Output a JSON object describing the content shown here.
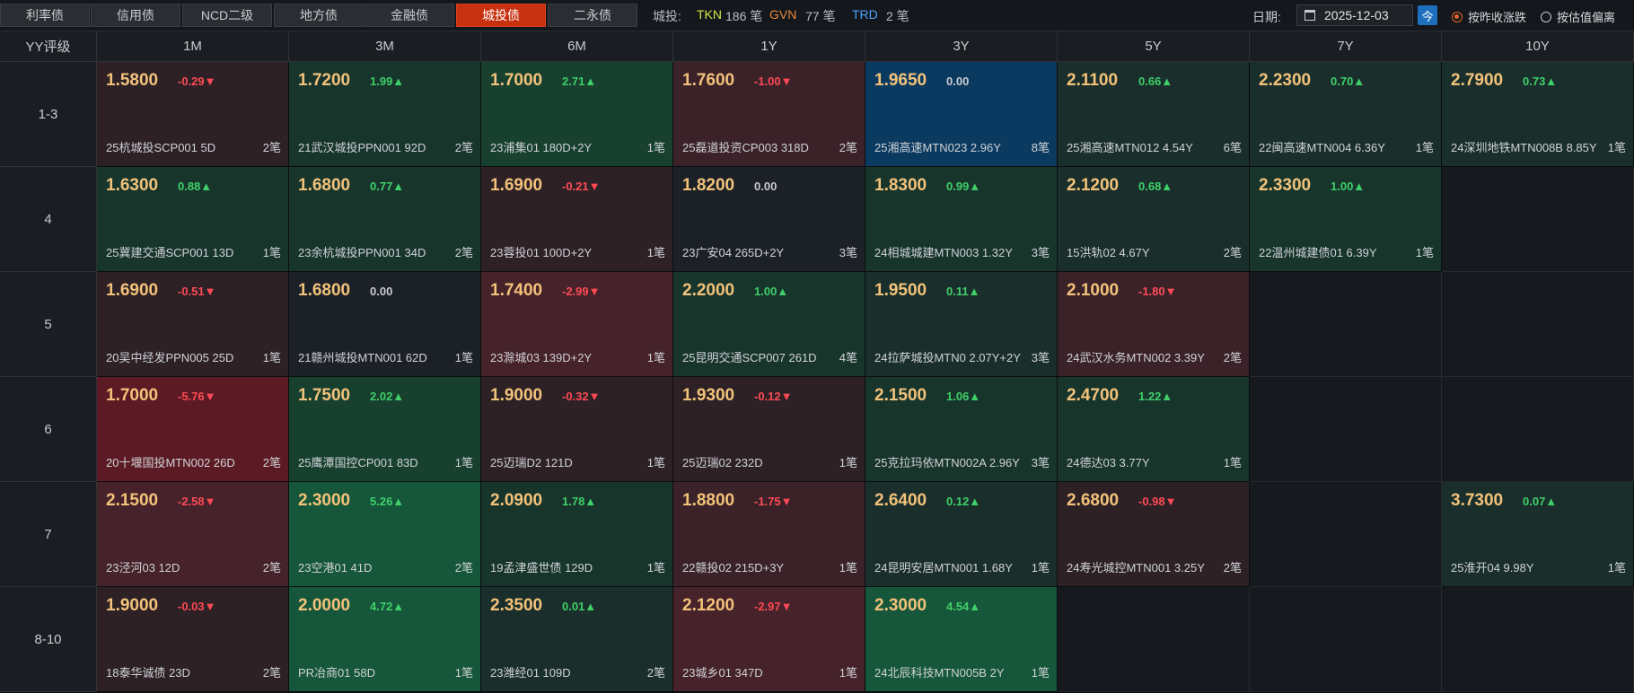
{
  "tabs": [
    "利率债",
    "信用债",
    "NCD二级",
    "地方债",
    "金融债",
    "城投债",
    "二永债"
  ],
  "active_tab": "城投债",
  "stats": {
    "label": "城投:",
    "tkn_label": "TKN",
    "tkn_count": "186 笔",
    "gvn_label": "GVN",
    "gvn_count": "77 笔",
    "trd_label": "TRD",
    "trd_count": "2 笔"
  },
  "date": {
    "label": "日期:",
    "value": "2025-12-03",
    "today_label": "今"
  },
  "radio": {
    "option1": "按昨收涨跌",
    "option2": "按估值偏离",
    "selected": "option1"
  },
  "corner_label": "YY评级",
  "columns": [
    "1M",
    "3M",
    "6M",
    "1Y",
    "3Y",
    "5Y",
    "7Y",
    "10Y"
  ],
  "rows": [
    {
      "label": "1-3",
      "cells": [
        {
          "yield": "1.5800",
          "change": "-0.29▼",
          "dir": "down",
          "bond": "25杭城投SCP001 5D",
          "count": "2笔",
          "color": "#2d2126"
        },
        {
          "yield": "1.7200",
          "change": "1.99▲",
          "dir": "up",
          "bond": "21武汉城投PPN001 92D",
          "count": "2笔",
          "color": "#18352c"
        },
        {
          "yield": "1.7000",
          "change": "2.71▲",
          "dir": "up",
          "bond": "23浦集01 180D+2Y",
          "count": "1笔",
          "color": "#17402f"
        },
        {
          "yield": "1.7600",
          "change": "-1.00▼",
          "dir": "down",
          "bond": "25磊道投资CP003 318D",
          "count": "2笔",
          "color": "#3a2228"
        },
        {
          "yield": "1.9650",
          "change": "0.00",
          "dir": "flat",
          "bond": "25湘高速MTN023 2.96Y",
          "count": "8笔",
          "color": "#0b3a60"
        },
        {
          "yield": "2.1100",
          "change": "0.66▲",
          "dir": "up",
          "bond": "25湘高速MTN012 4.54Y",
          "count": "6笔",
          "color": "#1a2f2b"
        },
        {
          "yield": "2.2300",
          "change": "0.70▲",
          "dir": "up",
          "bond": "22闽高速MTN004 6.36Y",
          "count": "1笔",
          "color": "#1a2f2b"
        },
        {
          "yield": "2.7900",
          "change": "0.73▲",
          "dir": "up",
          "bond": "24深圳地铁MTN008B 8.85Y",
          "count": "1笔",
          "color": "#1a2f2b"
        }
      ]
    },
    {
      "label": "4",
      "cells": [
        {
          "yield": "1.6300",
          "change": "0.88▲",
          "dir": "up",
          "bond": "25冀建交通SCP001 13D",
          "count": "1笔",
          "color": "#18352c"
        },
        {
          "yield": "1.6800",
          "change": "0.77▲",
          "dir": "up",
          "bond": "23余杭城投PPN001 34D",
          "count": "2笔",
          "color": "#18352c"
        },
        {
          "yield": "1.6900",
          "change": "-0.21▼",
          "dir": "down",
          "bond": "23蓉投01 100D+2Y",
          "count": "1笔",
          "color": "#2d2126"
        },
        {
          "yield": "1.8200",
          "change": "0.00",
          "dir": "flat",
          "bond": "23广安04 265D+2Y",
          "count": "3笔",
          "color": "#1c2128"
        },
        {
          "yield": "1.8300",
          "change": "0.99▲",
          "dir": "up",
          "bond": "24相城城建MTN003 1.32Y",
          "count": "3笔",
          "color": "#18352c"
        },
        {
          "yield": "2.1200",
          "change": "0.68▲",
          "dir": "up",
          "bond": "15洪轨02 4.67Y",
          "count": "2笔",
          "color": "#1a2f2b"
        },
        {
          "yield": "2.3300",
          "change": "1.00▲",
          "dir": "up",
          "bond": "22温州城建债01 6.39Y",
          "count": "1笔",
          "color": "#18352c"
        },
        null
      ]
    },
    {
      "label": "5",
      "cells": [
        {
          "yield": "1.6900",
          "change": "-0.51▼",
          "dir": "down",
          "bond": "20吴中经发PPN005 25D",
          "count": "1笔",
          "color": "#2d2126"
        },
        {
          "yield": "1.6800",
          "change": "0.00",
          "dir": "flat",
          "bond": "21赣州城投MTN001 62D",
          "count": "1笔",
          "color": "#1c2128"
        },
        {
          "yield": "1.7400",
          "change": "-2.99▼",
          "dir": "down",
          "bond": "23滁城03 139D+2Y",
          "count": "1笔",
          "color": "#46222a"
        },
        {
          "yield": "2.2000",
          "change": "1.00▲",
          "dir": "up",
          "bond": "25昆明交通SCP007 261D",
          "count": "4笔",
          "color": "#18352c"
        },
        {
          "yield": "1.9500",
          "change": "0.11▲",
          "dir": "up",
          "bond": "24拉萨城投MTN0 2.07Y+2Y",
          "count": "3笔",
          "color": "#1a2f2b"
        },
        {
          "yield": "2.1000",
          "change": "-1.80▼",
          "dir": "down",
          "bond": "24武汉水务MTN002 3.39Y",
          "count": "2笔",
          "color": "#3a2228"
        },
        null,
        null
      ]
    },
    {
      "label": "6",
      "cells": [
        {
          "yield": "1.7000",
          "change": "-5.76▼",
          "dir": "down",
          "bond": "20十堰国投MTN002 26D",
          "count": "2笔",
          "color": "#5c1b24"
        },
        {
          "yield": "1.7500",
          "change": "2.02▲",
          "dir": "up",
          "bond": "25鹰潭国控CP001 83D",
          "count": "1笔",
          "color": "#17402f"
        },
        {
          "yield": "1.9000",
          "change": "-0.32▼",
          "dir": "down",
          "bond": "25迈瑞D2 121D",
          "count": "1笔",
          "color": "#2d2126"
        },
        {
          "yield": "1.9300",
          "change": "-0.12▼",
          "dir": "down",
          "bond": "25迈瑞02 232D",
          "count": "1笔",
          "color": "#2d2126"
        },
        {
          "yield": "2.1500",
          "change": "1.06▲",
          "dir": "up",
          "bond": "25克拉玛依MTN002A 2.96Y",
          "count": "3笔",
          "color": "#18352c"
        },
        {
          "yield": "2.4700",
          "change": "1.22▲",
          "dir": "up",
          "bond": "24德达03 3.77Y",
          "count": "1笔",
          "color": "#18352c"
        },
        null,
        null
      ]
    },
    {
      "label": "7",
      "cells": [
        {
          "yield": "2.1500",
          "change": "-2.58▼",
          "dir": "down",
          "bond": "23泾河03 12D",
          "count": "2笔",
          "color": "#46222a"
        },
        {
          "yield": "2.3000",
          "change": "5.26▲",
          "dir": "up",
          "bond": "23空港01 41D",
          "count": "2笔",
          "color": "#16563a"
        },
        {
          "yield": "2.0900",
          "change": "1.78▲",
          "dir": "up",
          "bond": "19孟津盛世债 129D",
          "count": "1笔",
          "color": "#18352c"
        },
        {
          "yield": "1.8800",
          "change": "-1.75▼",
          "dir": "down",
          "bond": "22赣投02 215D+3Y",
          "count": "1笔",
          "color": "#3a2228"
        },
        {
          "yield": "2.6400",
          "change": "0.12▲",
          "dir": "up",
          "bond": "24昆明安居MTN001 1.68Y",
          "count": "1笔",
          "color": "#1a2f2b"
        },
        {
          "yield": "2.6800",
          "change": "-0.98▼",
          "dir": "down",
          "bond": "24寿光城控MTN001 3.25Y",
          "count": "2笔",
          "color": "#2d2126"
        },
        null,
        {
          "yield": "3.7300",
          "change": "0.07▲",
          "dir": "up",
          "bond": "25淮开04 9.98Y",
          "count": "1笔",
          "color": "#1a2f2b"
        }
      ]
    },
    {
      "label": "8-10",
      "cells": [
        {
          "yield": "1.9000",
          "change": "-0.03▼",
          "dir": "down",
          "bond": "18泰华诚债 23D",
          "count": "2笔",
          "color": "#2d2126"
        },
        {
          "yield": "2.0000",
          "change": "4.72▲",
          "dir": "up",
          "bond": "PR冶商01 58D",
          "count": "1笔",
          "color": "#16563a"
        },
        {
          "yield": "2.3500",
          "change": "0.01▲",
          "dir": "up",
          "bond": "23潍经01 109D",
          "count": "2笔",
          "color": "#1a2f2b"
        },
        {
          "yield": "2.1200",
          "change": "-2.97▼",
          "dir": "down",
          "bond": "23城乡01 347D",
          "count": "1笔",
          "color": "#46222a"
        },
        {
          "yield": "2.3000",
          "change": "4.54▲",
          "dir": "up",
          "bond": "24北辰科技MTN005B 2Y",
          "count": "1笔",
          "color": "#16563a"
        },
        null,
        null,
        null
      ]
    }
  ]
}
